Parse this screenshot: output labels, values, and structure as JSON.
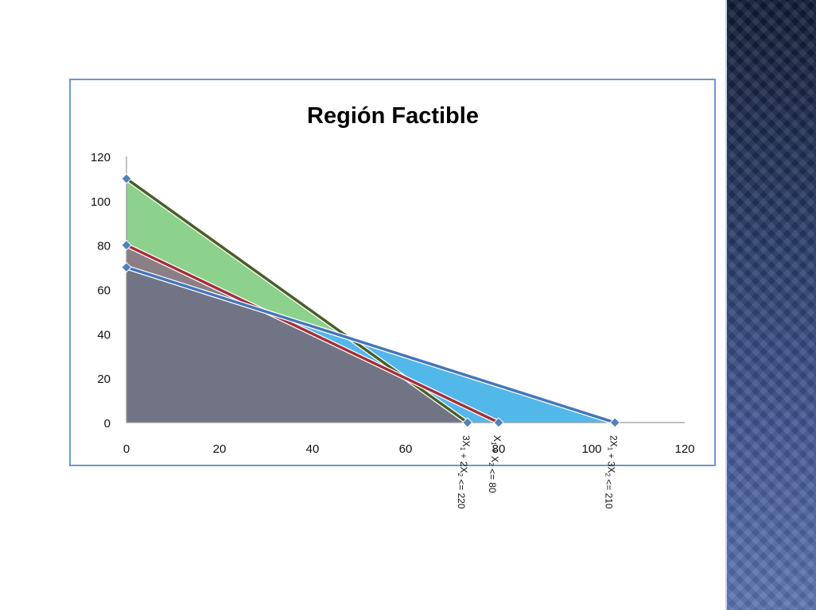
{
  "chart_data": {
    "type": "area",
    "title": "Región Factible",
    "xlabel": "",
    "ylabel": "",
    "xlim": [
      0,
      120
    ],
    "ylim": [
      0,
      120
    ],
    "x_ticks": [
      "0",
      "20",
      "40",
      "60",
      "80",
      "100",
      "120"
    ],
    "y_ticks": [
      "0",
      "20",
      "40",
      "60",
      "80",
      "100",
      "120"
    ],
    "grid": false,
    "legend": "none",
    "series": [
      {
        "key": "c1",
        "label_parts": {
          "a": "3X",
          "a_sub": "1",
          "b": " + 2X",
          "b_sub": "2",
          "rel": " <= 220"
        },
        "points": [
          [
            0,
            110
          ],
          [
            73.3,
            0
          ]
        ],
        "fill": "#8cd18c",
        "line": "#4a5e26"
      },
      {
        "key": "c2",
        "label_parts": {
          "a": "X",
          "a_sub": "1",
          "b": " + X",
          "b_sub": "2",
          "rel": " <= 80"
        },
        "points": [
          [
            0,
            80
          ],
          [
            80,
            0
          ]
        ],
        "fill": "#8a7f84",
        "line": "#a52f3a"
      },
      {
        "key": "c3",
        "label_parts": {
          "a": "2X",
          "a_sub": "1",
          "b": " + 3X",
          "b_sub": "2",
          "rel": " <= 210"
        },
        "points": [
          [
            0,
            70
          ],
          [
            105,
            0
          ]
        ],
        "fill": "#52b8ea",
        "line": "#4476bb"
      }
    ],
    "feasible_region": {
      "vertices": [
        [
          0,
          0
        ],
        [
          0,
          70
        ],
        [
          30,
          50
        ],
        [
          60,
          20
        ],
        [
          73.3,
          0
        ]
      ],
      "fill": "#717485"
    },
    "marker_color": "#4f81bd"
  }
}
